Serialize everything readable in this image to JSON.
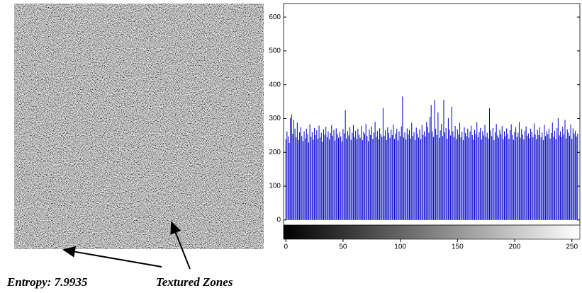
{
  "annotations": {
    "entropy": "Entropy: 7.9935",
    "textured": "Textured Zones"
  },
  "chart_data": {
    "type": "bar",
    "color": "#0000cc",
    "xlim": [
      -2,
      257
    ],
    "ylim": [
      -15,
      640
    ],
    "xticks": [
      0,
      50,
      100,
      150,
      200,
      250
    ],
    "yticks": [
      0,
      100,
      200,
      300,
      400,
      500,
      600
    ],
    "x": [
      0,
      1,
      2,
      3,
      4,
      5,
      6,
      7,
      8,
      9,
      10,
      11,
      12,
      13,
      14,
      15,
      16,
      17,
      18,
      19,
      20,
      21,
      22,
      23,
      24,
      25,
      26,
      27,
      28,
      29,
      30,
      31,
      32,
      33,
      34,
      35,
      36,
      37,
      38,
      39,
      40,
      41,
      42,
      43,
      44,
      45,
      46,
      47,
      48,
      49,
      50,
      51,
      52,
      53,
      54,
      55,
      56,
      57,
      58,
      59,
      60,
      61,
      62,
      63,
      64,
      65,
      66,
      67,
      68,
      69,
      70,
      71,
      72,
      73,
      74,
      75,
      76,
      77,
      78,
      79,
      80,
      81,
      82,
      83,
      84,
      85,
      86,
      87,
      88,
      89,
      90,
      91,
      92,
      93,
      94,
      95,
      96,
      97,
      98,
      99,
      100,
      101,
      102,
      103,
      104,
      105,
      106,
      107,
      108,
      109,
      110,
      111,
      112,
      113,
      114,
      115,
      116,
      117,
      118,
      119,
      120,
      121,
      122,
      123,
      124,
      125,
      126,
      127,
      128,
      129,
      130,
      131,
      132,
      133,
      134,
      135,
      136,
      137,
      138,
      139,
      140,
      141,
      142,
      143,
      144,
      145,
      146,
      147,
      148,
      149,
      150,
      151,
      152,
      153,
      154,
      155,
      156,
      157,
      158,
      159,
      160,
      161,
      162,
      163,
      164,
      165,
      166,
      167,
      168,
      169,
      170,
      171,
      172,
      173,
      174,
      175,
      176,
      177,
      178,
      179,
      180,
      181,
      182,
      183,
      184,
      185,
      186,
      187,
      188,
      189,
      190,
      191,
      192,
      193,
      194,
      195,
      196,
      197,
      198,
      199,
      200,
      201,
      202,
      203,
      204,
      205,
      206,
      207,
      208,
      209,
      210,
      211,
      212,
      213,
      214,
      215,
      216,
      217,
      218,
      219,
      220,
      221,
      222,
      223,
      224,
      225,
      226,
      227,
      228,
      229,
      230,
      231,
      232,
      233,
      234,
      235,
      236,
      237,
      238,
      239,
      240,
      241,
      242,
      243,
      244,
      245,
      246,
      247,
      248,
      249,
      250,
      251,
      252,
      253,
      254,
      255
    ],
    "values": [
      238,
      262,
      247,
      228,
      301,
      312,
      255,
      296,
      270,
      244,
      288,
      236,
      259,
      275,
      248,
      233,
      262,
      241,
      270,
      254,
      229,
      283,
      246,
      260,
      237,
      272,
      251,
      266,
      240,
      279,
      244,
      258,
      231,
      268,
      252,
      276,
      245,
      262,
      238,
      257,
      280,
      249,
      266,
      235,
      271,
      254,
      243,
      260,
      247,
      233,
      269,
      256,
      325,
      241,
      263,
      250,
      274,
      237,
      258,
      281,
      245,
      264,
      239,
      270,
      252,
      243,
      278,
      236,
      261,
      255,
      284,
      248,
      233,
      267,
      251,
      276,
      240,
      259,
      290,
      246,
      263,
      238,
      271,
      254,
      246,
      331,
      249,
      265,
      236,
      274,
      257,
      243,
      268,
      251,
      282,
      240,
      256,
      270,
      235,
      262,
      248,
      277,
      365,
      244,
      259,
      238,
      271,
      253,
      266,
      241,
      287,
      249,
      260,
      236,
      273,
      255,
      244,
      268,
      239,
      281,
      252,
      262,
      247,
      290,
      275,
      258,
      305,
      340,
      262,
      246,
      355,
      270,
      251,
      318,
      243,
      265,
      284,
      248,
      355,
      259,
      272,
      240,
      301,
      266,
      250,
      335,
      262,
      245,
      278,
      239,
      268,
      253,
      287,
      244,
      261,
      236,
      274,
      257,
      248,
      270,
      243,
      262,
      279,
      251,
      237,
      266,
      254,
      289,
      245,
      260,
      272,
      238,
      263,
      250,
      281,
      246,
      258,
      241,
      330,
      265,
      248,
      272,
      236,
      259,
      284,
      250,
      243,
      267,
      254,
      278,
      239,
      262,
      248,
      271,
      255,
      240,
      266,
      283,
      251,
      237,
      261,
      274,
      246,
      258,
      290,
      243,
      269,
      252,
      238,
      264,
      277,
      249,
      256,
      242,
      270,
      260,
      245,
      285,
      253,
      239,
      267,
      251,
      274,
      244,
      259,
      236,
      281,
      248,
      263,
      254,
      270,
      241,
      257,
      288,
      246,
      264,
      239,
      272,
      301,
      250,
      262,
      245,
      276,
      253,
      296,
      241,
      268,
      258,
      249,
      283,
      240,
      271,
      256,
      264,
      247,
      255
    ]
  }
}
